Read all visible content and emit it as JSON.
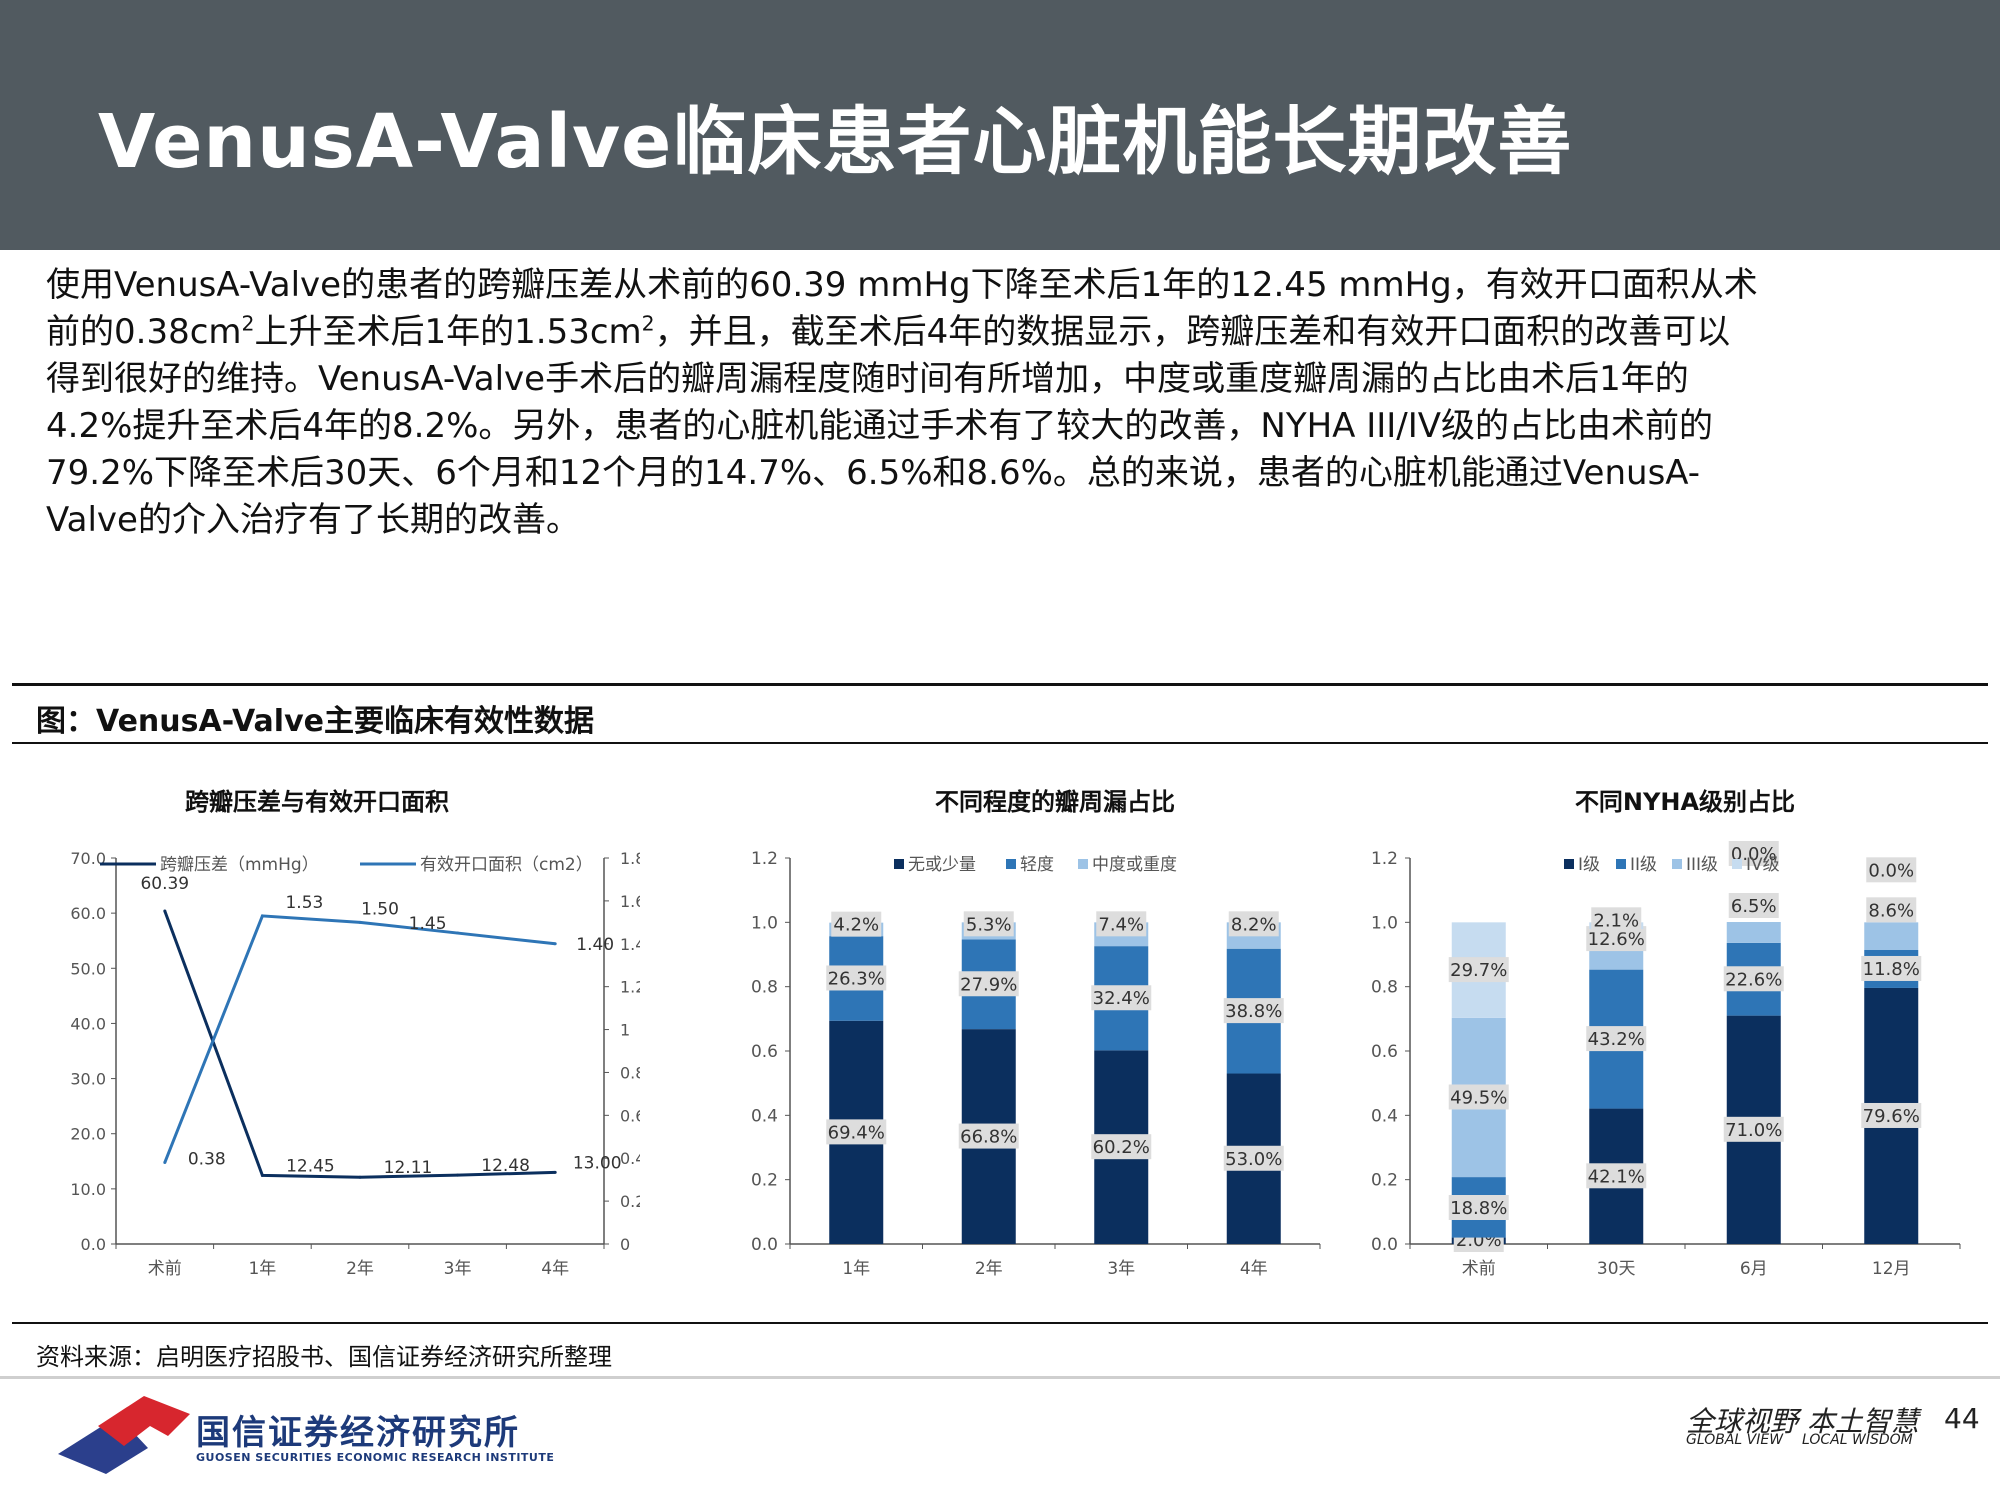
{
  "header": {
    "title": "VenusA-Valve临床患者心脏机能长期改善"
  },
  "body": {
    "l1": "使用VenusA-Valve的患者的跨瓣压差从术前的60.39 mmHg下降至术后1年的12.45 mmHg，有效开口面积从术",
    "l2a": "前的0.38cm",
    "l2b": "2",
    "l2c": "上升至术后1年的1.53cm",
    "l2d": "2",
    "l2e": "，并且，截至术后4年的数据显示，跨瓣压差和有效开口面积的改善可以",
    "l3": "得到很好的维持。VenusA-Valve手术后的瓣周漏程度随时间有所增加，中度或重度瓣周漏的占比由术后1年的",
    "l4": "4.2%提升至术后4年的8.2%。另外，患者的心脏机能通过手术有了较大的改善，NYHA III/IV级的占比由术前的",
    "l5": "79.2%下降至术后30天、6个月和12个月的14.7%、6.5%和8.6%。总的来说，患者的心脏机能通过VenusA-",
    "l6": "Valve的介入治疗有了长期的改善。"
  },
  "figure": {
    "title": "图：VenusA-Valve主要临床有效性数据"
  },
  "source": "资料来源：启明医疗招股书、国信证券经济研究所整理",
  "footer": {
    "company_cn": "国信证券经济研究所",
    "company_en": "GUOSEN SECURITIES ECONOMIC RESEARCH INSTITUTE",
    "slogan_cn": "全球视野 本土智慧",
    "slogan_en1": "GLOBAL VIEW",
    "slogan_en2": "LOCAL WISDOM",
    "page": "44"
  },
  "chart_data": [
    {
      "type": "line",
      "title": "跨瓣压差与有效开口面积",
      "categories": [
        "术前",
        "1年",
        "2年",
        "3年",
        "4年"
      ],
      "series": [
        {
          "name": "跨瓣压差（mmHg）",
          "axis": "left",
          "color": "#0b2f5e",
          "values": [
            60.39,
            12.45,
            12.11,
            12.48,
            13.0
          ],
          "labels": [
            "60.39",
            "12.45",
            "12.11",
            "12.48",
            "13.00"
          ]
        },
        {
          "name": "有效开口面积（cm2）",
          "axis": "right",
          "color": "#2e75b6",
          "values": [
            0.38,
            1.53,
            1.5,
            1.45,
            1.4
          ],
          "labels": [
            "0.38",
            "1.53",
            "1.50",
            "1.45",
            "1.40"
          ]
        }
      ],
      "y_left": {
        "lim": [
          0,
          70
        ],
        "ticks": [
          "0.0",
          "10.0",
          "20.0",
          "30.0",
          "40.0",
          "50.0",
          "60.0",
          "70.0"
        ]
      },
      "y_right": {
        "lim": [
          0,
          1.8
        ],
        "ticks": [
          "0",
          "0.2",
          "0.4",
          "0.6",
          "0.8",
          "1",
          "1.2",
          "1.4",
          "1.6",
          "1.8"
        ]
      },
      "legend": "top"
    },
    {
      "type": "bar",
      "stacked": true,
      "title": "不同程度的瓣周漏占比",
      "categories": [
        "1年",
        "2年",
        "3年",
        "4年"
      ],
      "series": [
        {
          "name": "无或少量",
          "color": "#0b2f5e",
          "values": [
            0.694,
            0.668,
            0.602,
            0.53
          ],
          "labels": [
            "69.4%",
            "66.8%",
            "60.2%",
            "53.0%"
          ]
        },
        {
          "name": "轻度",
          "color": "#2e75b6",
          "values": [
            0.263,
            0.279,
            0.324,
            0.388
          ],
          "labels": [
            "26.3%",
            "27.9%",
            "32.4%",
            "38.8%"
          ]
        },
        {
          "name": "中度或重度",
          "color": "#9dc3e6",
          "values": [
            0.042,
            0.053,
            0.074,
            0.082
          ],
          "labels": [
            "4.2%",
            "5.3%",
            "7.4%",
            "8.2%"
          ]
        }
      ],
      "y": {
        "lim": [
          0,
          1.2
        ],
        "ticks": [
          "0.0",
          "0.2",
          "0.4",
          "0.6",
          "0.8",
          "1.0",
          "1.2"
        ]
      },
      "legend": "top"
    },
    {
      "type": "bar",
      "stacked": true,
      "title": "不同NYHA级别占比",
      "categories": [
        "术前",
        "30天",
        "6月",
        "12月"
      ],
      "series": [
        {
          "name": "I级",
          "color": "#0b2f5e",
          "values": [
            0.02,
            0.421,
            0.71,
            0.796
          ],
          "labels": [
            "2.0%",
            "42.1%",
            "71.0%",
            "79.6%"
          ]
        },
        {
          "name": "II级",
          "color": "#2e75b6",
          "values": [
            0.188,
            0.432,
            0.226,
            0.118
          ],
          "labels": [
            "18.8%",
            "43.2%",
            "22.6%",
            "11.8%"
          ]
        },
        {
          "name": "III级",
          "color": "#9dc3e6",
          "values": [
            0.495,
            0.126,
            0.065,
            0.086
          ],
          "labels": [
            "49.5%",
            "12.6%",
            "6.5%",
            "8.6%"
          ]
        },
        {
          "name": "IV级",
          "color": "#c6dcf0",
          "values": [
            0.297,
            0.021,
            0.0,
            0.0
          ],
          "labels": [
            "29.7%",
            "2.1%",
            "0.0%",
            "0.0%"
          ]
        }
      ],
      "y": {
        "lim": [
          0,
          1.2
        ],
        "ticks": [
          "0.0",
          "0.2",
          "0.4",
          "0.6",
          "0.8",
          "1.0",
          "1.2"
        ]
      },
      "legend": "top"
    }
  ]
}
